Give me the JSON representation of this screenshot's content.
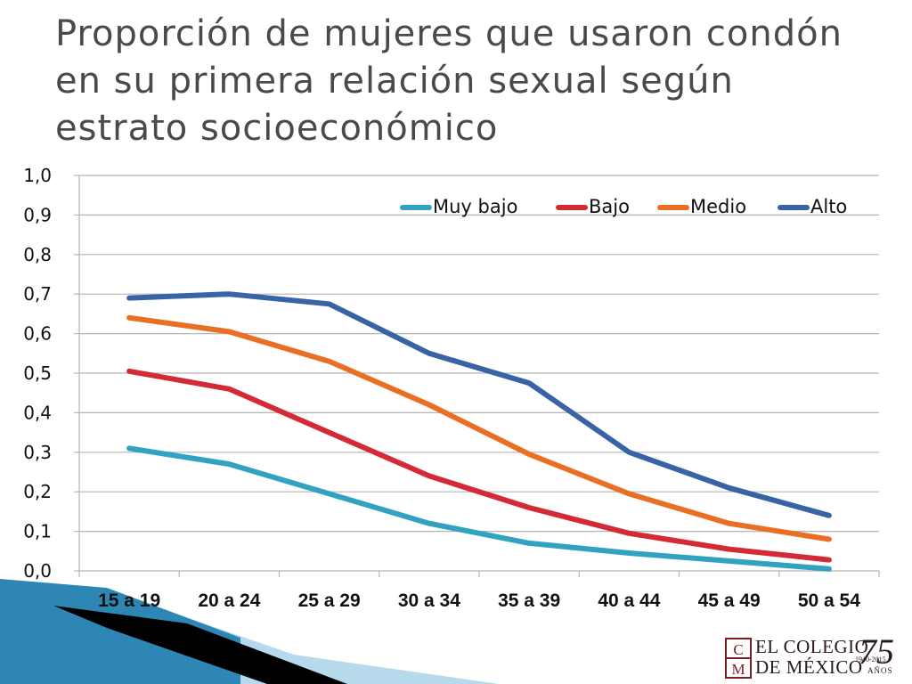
{
  "slide": {
    "title": "Proporción de mujeres que usaron condón en su primera relación sexual según estrato socioeconómico"
  },
  "colors": {
    "muy_bajo": "#31a3c1",
    "bajo": "#d42a35",
    "medio": "#ea6f24",
    "alto": "#3863a5",
    "grid": "#b5b5b5",
    "decor_dark": "#000000",
    "decor_blue": "#2d86b4",
    "decor_light": "#a9d3e8"
  },
  "chart_data": {
    "type": "line",
    "categories": [
      "15 a 19",
      "20 a 24",
      "25 a 29",
      "30 a 34",
      "35 a 39",
      "40 a 44",
      "45 a 49",
      "50 a 54"
    ],
    "ylim": [
      0,
      1.0
    ],
    "yticks": [
      "0,0",
      "0,1",
      "0,2",
      "0,3",
      "0,4",
      "0,5",
      "0,6",
      "0,7",
      "0,8",
      "0,9",
      "1,0"
    ],
    "grid": true,
    "legend_position": "top-right",
    "series": [
      {
        "name": "Muy bajo",
        "color": "#31a3c1",
        "values": [
          0.31,
          0.27,
          0.195,
          0.12,
          0.07,
          0.045,
          0.025,
          0.005
        ]
      },
      {
        "name": "Bajo",
        "color": "#d42a35",
        "values": [
          0.505,
          0.46,
          0.35,
          0.24,
          0.16,
          0.095,
          0.055,
          0.028
        ]
      },
      {
        "name": "Medio",
        "color": "#ea6f24",
        "values": [
          0.64,
          0.605,
          0.53,
          0.42,
          0.295,
          0.195,
          0.12,
          0.08
        ]
      },
      {
        "name": "Alto",
        "color": "#3863a5",
        "values": [
          0.69,
          0.7,
          0.675,
          0.55,
          0.475,
          0.3,
          0.21,
          0.14
        ]
      }
    ]
  },
  "logo": {
    "line1": "EL COLEGIO",
    "line2": "DE MÉXICO",
    "monogram_top": "C",
    "monogram_bottom": "M",
    "anniversary": "75",
    "years": "1940-2015",
    "anos": "AÑOS"
  }
}
